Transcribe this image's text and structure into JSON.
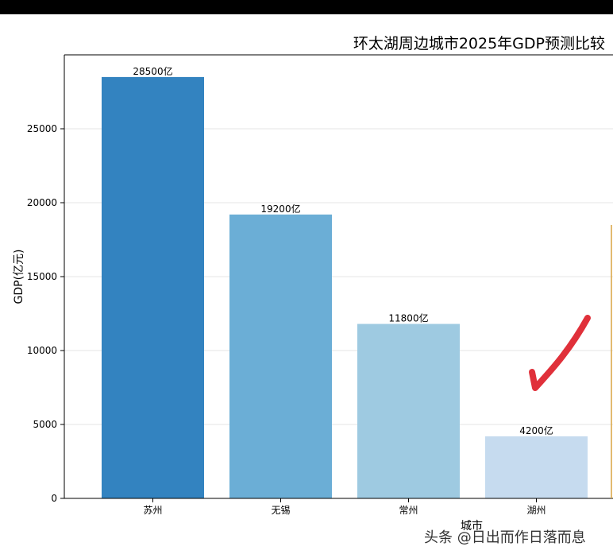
{
  "chart_data": {
    "type": "bar",
    "title": "环太湖周边城市2025年GDP预测比较",
    "xlabel": "城市",
    "ylabel": "GDP(亿元)",
    "categories": [
      "苏州",
      "无锡",
      "常州",
      "湖州"
    ],
    "values": [
      28500,
      19200,
      11800,
      4200
    ],
    "data_labels": [
      "28500亿",
      "19200亿",
      "11800亿",
      "4200亿"
    ],
    "bar_colors": [
      "#3383c0",
      "#6baed6",
      "#9ecae1",
      "#c6dbef"
    ],
    "ylim": [
      0,
      30000
    ],
    "yticks": [
      0,
      5000,
      10000,
      15000,
      20000,
      25000
    ],
    "ytick_labels": [
      "0",
      "5000",
      "10000",
      "15000",
      "20000",
      "25000"
    ],
    "grid": "horizontal",
    "legend": "none"
  },
  "annotation": {
    "type": "checkmark",
    "color": "#e0303a"
  },
  "watermark": {
    "text": "头条 @日出而作日落而息"
  }
}
